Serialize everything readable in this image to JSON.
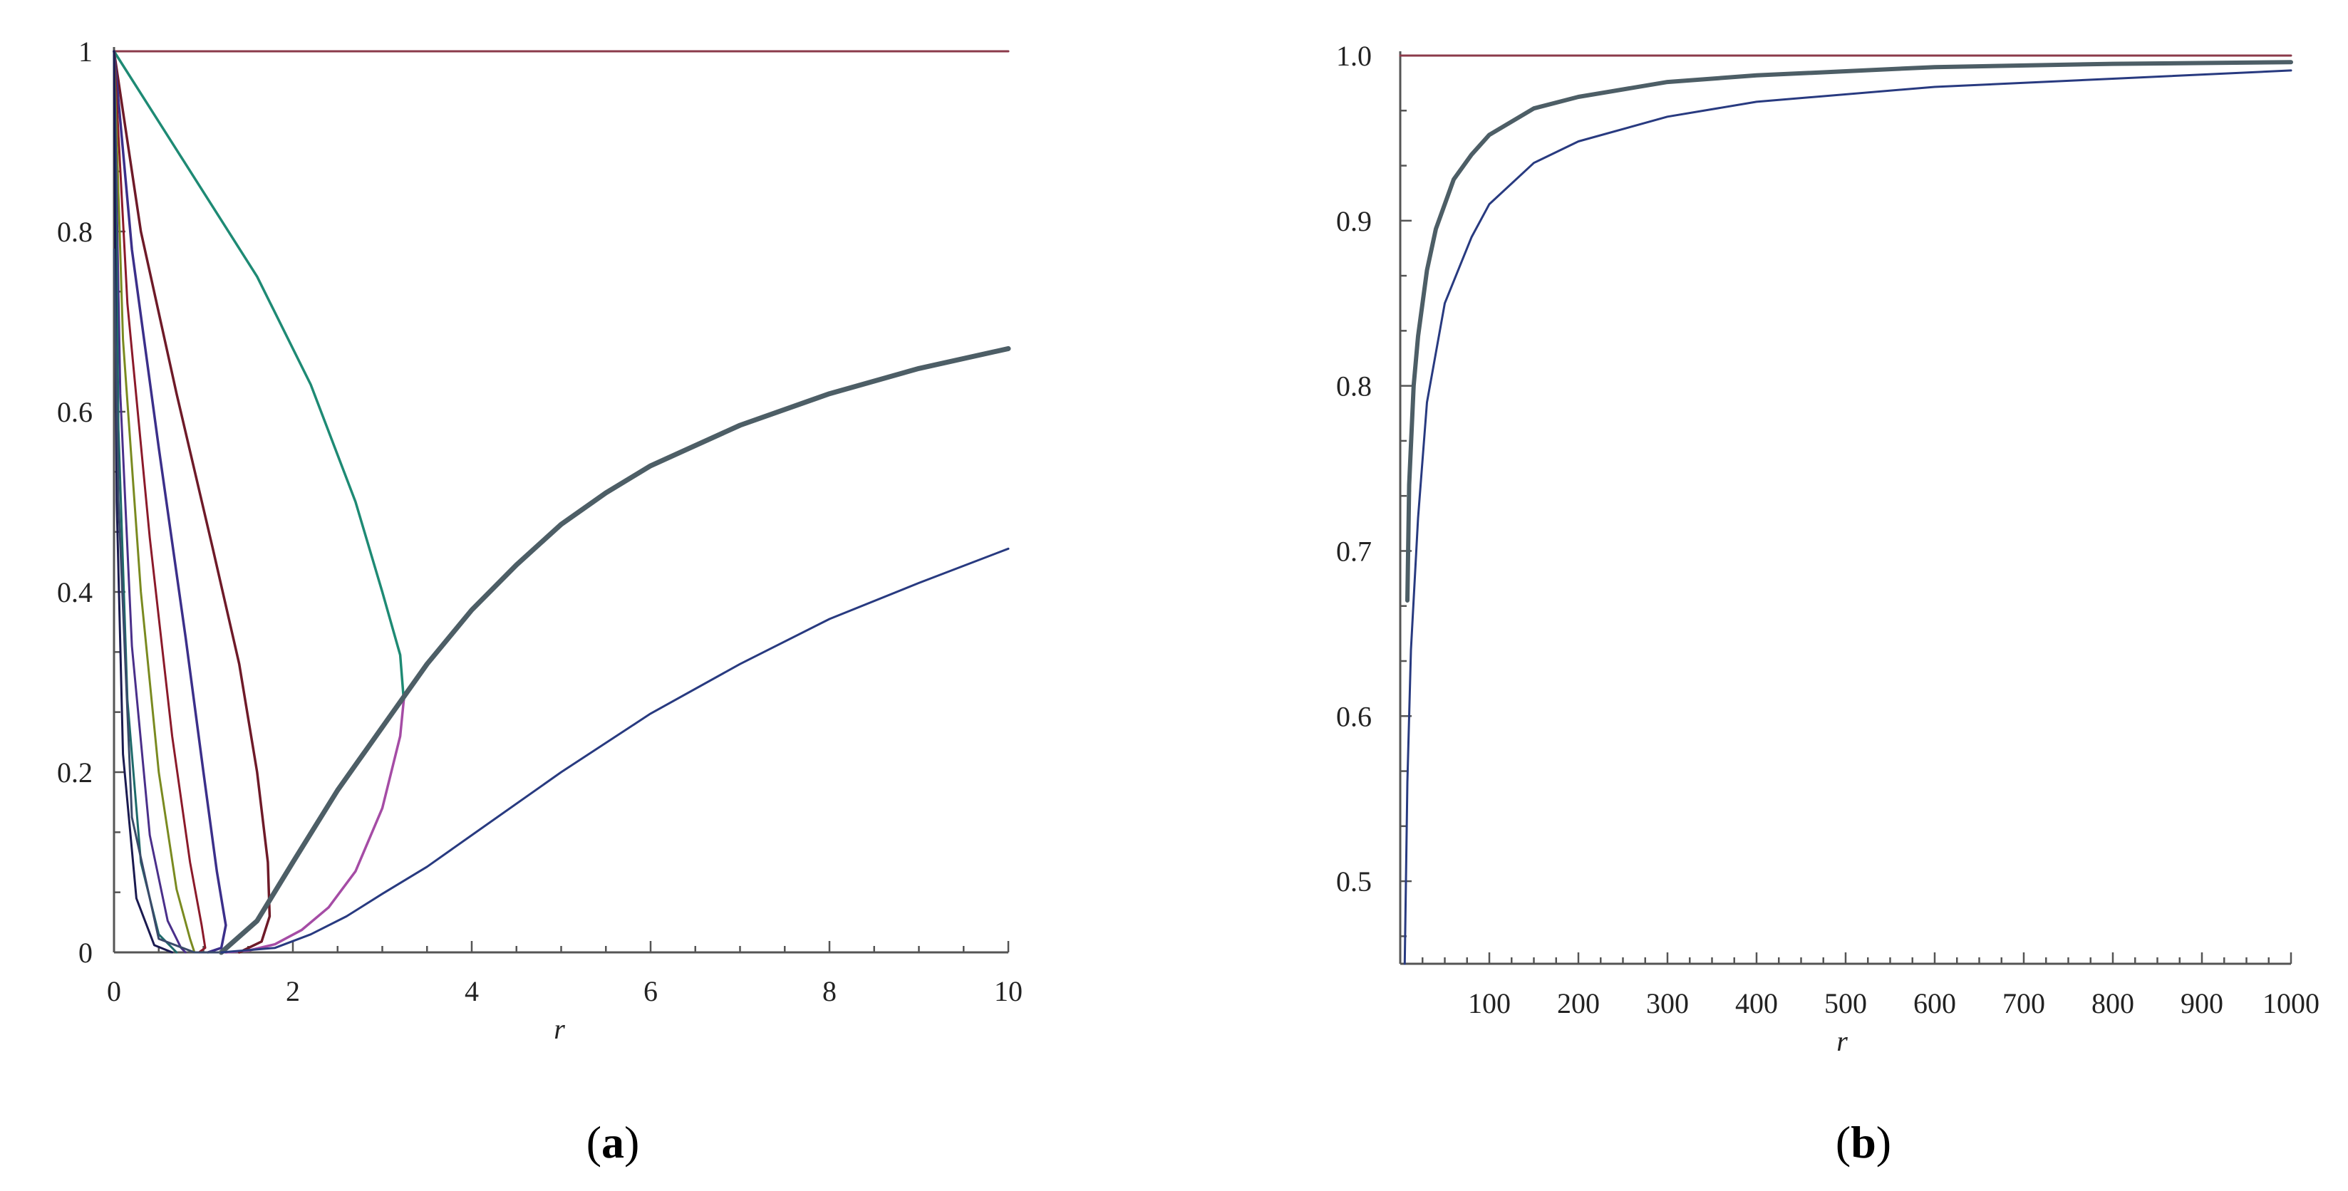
{
  "chart_data": [
    {
      "panel": "a",
      "panel_label": "a",
      "type": "line",
      "xlabel": "r",
      "ylabel": "",
      "xlim": [
        0,
        10
      ],
      "ylim": [
        0,
        1
      ],
      "x_ticks": [
        0,
        2,
        4,
        6,
        8,
        10
      ],
      "x_tick_labels": [
        "0",
        "2",
        "4",
        "6",
        "8",
        "10"
      ],
      "y_ticks": [
        0,
        0.2,
        0.4,
        0.6,
        0.8,
        1
      ],
      "y_tick_labels": [
        "0",
        "0.2",
        "0.4",
        "0.6",
        "0.8",
        "1"
      ],
      "grid": false,
      "legend": "none",
      "series": [
        {
          "color": "#8b3a4a",
          "width": 3,
          "points": [
            [
              0,
              1
            ],
            [
              10,
              1
            ]
          ]
        },
        {
          "color": "#1e8a74",
          "width": 3.5,
          "points": [
            [
              0,
              1
            ],
            [
              0.8,
              0.875
            ],
            [
              1.6,
              0.75
            ],
            [
              2.2,
              0.63
            ],
            [
              2.7,
              0.5
            ],
            [
              3.0,
              0.4
            ],
            [
              3.2,
              0.33
            ],
            [
              3.24,
              0.28
            ]
          ]
        },
        {
          "color": "#a54ca5",
          "width": 3.5,
          "points": [
            [
              3.24,
              0.28
            ],
            [
              3.2,
              0.24
            ],
            [
              3.0,
              0.16
            ],
            [
              2.7,
              0.09
            ],
            [
              2.4,
              0.05
            ],
            [
              2.1,
              0.025
            ],
            [
              1.8,
              0.009
            ],
            [
              1.5,
              0.002
            ],
            [
              1.25,
              0
            ]
          ]
        },
        {
          "color": "#6e1a28",
          "width": 3.5,
          "points": [
            [
              0,
              1
            ],
            [
              0.3,
              0.8
            ],
            [
              0.7,
              0.62
            ],
            [
              1.1,
              0.45
            ],
            [
              1.4,
              0.32
            ],
            [
              1.6,
              0.2
            ],
            [
              1.72,
              0.1
            ],
            [
              1.74,
              0.04
            ],
            [
              1.65,
              0.012
            ],
            [
              1.4,
              0
            ]
          ]
        },
        {
          "color": "#3b2f8a",
          "width": 3.5,
          "points": [
            [
              0,
              1
            ],
            [
              0.2,
              0.78
            ],
            [
              0.5,
              0.56
            ],
            [
              0.8,
              0.35
            ],
            [
              1.0,
              0.2
            ],
            [
              1.15,
              0.09
            ],
            [
              1.25,
              0.03
            ],
            [
              1.2,
              0.005
            ],
            [
              1.05,
              0
            ]
          ]
        },
        {
          "color": "#8b1a2a",
          "width": 3,
          "points": [
            [
              0,
              1
            ],
            [
              0.15,
              0.72
            ],
            [
              0.4,
              0.46
            ],
            [
              0.65,
              0.24
            ],
            [
              0.85,
              0.1
            ],
            [
              0.98,
              0.03
            ],
            [
              1.02,
              0.005
            ],
            [
              0.95,
              0
            ]
          ]
        },
        {
          "color": "#7a8a20",
          "width": 3,
          "points": [
            [
              0,
              1
            ],
            [
              0.1,
              0.68
            ],
            [
              0.3,
              0.4
            ],
            [
              0.5,
              0.2
            ],
            [
              0.7,
              0.07
            ],
            [
              0.85,
              0.015
            ],
            [
              0.9,
              0
            ]
          ]
        },
        {
          "color": "#4a2f8a",
          "width": 3,
          "points": [
            [
              0,
              1
            ],
            [
              0.07,
              0.62
            ],
            [
              0.2,
              0.34
            ],
            [
              0.4,
              0.13
            ],
            [
              0.6,
              0.035
            ],
            [
              0.75,
              0.005
            ],
            [
              0.8,
              0
            ]
          ]
        },
        {
          "color": "#1e6a6a",
          "width": 3,
          "points": [
            [
              0,
              1
            ],
            [
              0.05,
              0.58
            ],
            [
              0.15,
              0.28
            ],
            [
              0.3,
              0.1
            ],
            [
              0.5,
              0.02
            ],
            [
              0.7,
              0
            ]
          ]
        },
        {
          "color": "#1a1a50",
          "width": 3,
          "points": [
            [
              0,
              1
            ],
            [
              0.03,
              0.5
            ],
            [
              0.1,
              0.22
            ],
            [
              0.25,
              0.06
            ],
            [
              0.45,
              0.008
            ],
            [
              0.65,
              0
            ]
          ]
        },
        {
          "color": "#3a4a6a",
          "width": 3,
          "points": [
            [
              0,
              0.78
            ],
            [
              0.05,
              0.5
            ],
            [
              0.2,
              0.15
            ],
            [
              0.5,
              0.015
            ],
            [
              0.9,
              0
            ],
            [
              1.05,
              0
            ],
            [
              1.2,
              0
            ]
          ]
        },
        {
          "color": "#4d5e66",
          "width": 7,
          "points": [
            [
              1.2,
              0
            ],
            [
              1.6,
              0.035
            ],
            [
              2.0,
              0.1
            ],
            [
              2.5,
              0.18
            ],
            [
              3.0,
              0.25
            ],
            [
              3.5,
              0.32
            ],
            [
              4.0,
              0.38
            ],
            [
              4.5,
              0.43
            ],
            [
              5.0,
              0.475
            ],
            [
              5.5,
              0.51
            ],
            [
              6.0,
              0.54
            ],
            [
              7.0,
              0.585
            ],
            [
              8.0,
              0.62
            ],
            [
              9.0,
              0.648
            ],
            [
              10.0,
              0.67
            ]
          ]
        },
        {
          "color": "#283a80",
          "width": 3,
          "points": [
            [
              1.2,
              0
            ],
            [
              1.8,
              0.005
            ],
            [
              2.2,
              0.02
            ],
            [
              2.6,
              0.04
            ],
            [
              3.0,
              0.065
            ],
            [
              3.5,
              0.095
            ],
            [
              4.0,
              0.13
            ],
            [
              5.0,
              0.2
            ],
            [
              6.0,
              0.265
            ],
            [
              7.0,
              0.32
            ],
            [
              8.0,
              0.37
            ],
            [
              9.0,
              0.41
            ],
            [
              10.0,
              0.448
            ]
          ]
        }
      ]
    },
    {
      "panel": "b",
      "panel_label": "b",
      "type": "line",
      "xlabel": "r",
      "ylabel": "",
      "xlim": [
        0,
        1000
      ],
      "ylim": [
        0.45,
        1.0
      ],
      "x_ticks": [
        100,
        200,
        300,
        400,
        500,
        600,
        700,
        800,
        900,
        1000
      ],
      "x_tick_labels": [
        "100",
        "200",
        "300",
        "400",
        "500",
        "600",
        "700",
        "800",
        "900",
        "1000"
      ],
      "y_ticks": [
        0.5,
        0.6,
        0.7,
        0.8,
        0.9,
        1.0
      ],
      "y_tick_labels": [
        "0.5",
        "0.6",
        "0.7",
        "0.8",
        "0.9",
        "1.0"
      ],
      "grid": false,
      "legend": "none",
      "series": [
        {
          "color": "#8b3a4a",
          "width": 3,
          "points": [
            [
              0,
              1
            ],
            [
              1000,
              1
            ]
          ]
        },
        {
          "color": "#4d5e66",
          "width": 6,
          "points": [
            [
              8,
              0.67
            ],
            [
              10,
              0.74
            ],
            [
              15,
              0.8
            ],
            [
              20,
              0.83
            ],
            [
              30,
              0.87
            ],
            [
              40,
              0.895
            ],
            [
              60,
              0.925
            ],
            [
              80,
              0.94
            ],
            [
              100,
              0.952
            ],
            [
              150,
              0.968
            ],
            [
              200,
              0.975
            ],
            [
              300,
              0.984
            ],
            [
              400,
              0.988
            ],
            [
              600,
              0.993
            ],
            [
              800,
              0.995
            ],
            [
              1000,
              0.996
            ]
          ]
        },
        {
          "color": "#283a80",
          "width": 3,
          "points": [
            [
              5,
              0.45
            ],
            [
              8,
              0.56
            ],
            [
              12,
              0.64
            ],
            [
              20,
              0.72
            ],
            [
              30,
              0.79
            ],
            [
              50,
              0.85
            ],
            [
              80,
              0.89
            ],
            [
              100,
              0.91
            ],
            [
              150,
              0.935
            ],
            [
              200,
              0.948
            ],
            [
              300,
              0.963
            ],
            [
              400,
              0.972
            ],
            [
              600,
              0.981
            ],
            [
              800,
              0.986
            ],
            [
              1000,
              0.991
            ]
          ]
        }
      ]
    }
  ]
}
